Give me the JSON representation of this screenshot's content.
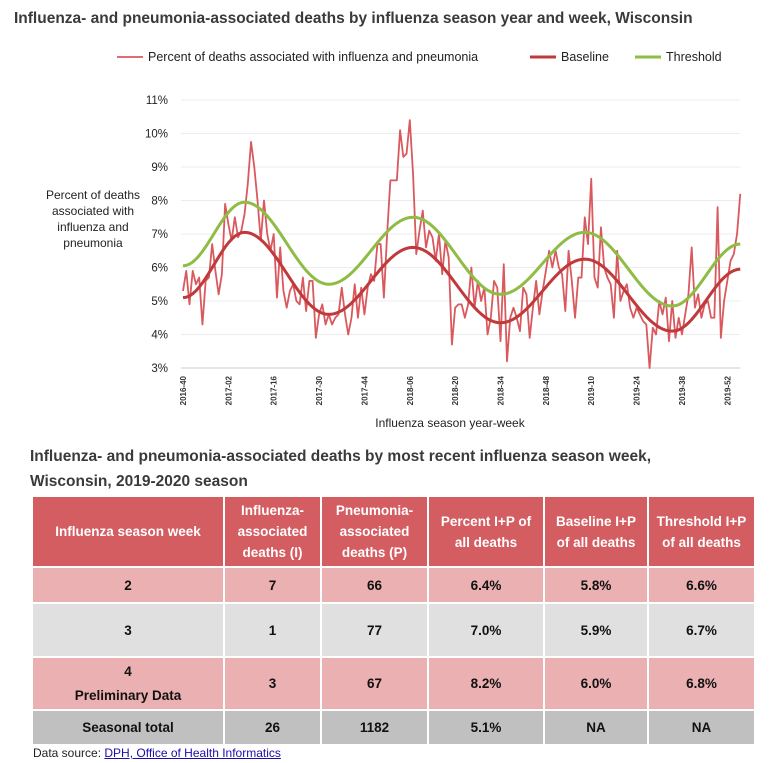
{
  "chart_data": {
    "type": "line",
    "title": "Influenza- and pneumonia-associated deaths by influenza season year and week, Wisconsin",
    "xlabel": "Influenza season year-week",
    "ylabel": "Percent of deaths associated with influenza and pneumonia",
    "ylim": [
      3,
      11
    ],
    "yticks": [
      "3%",
      "4%",
      "5%",
      "6%",
      "7%",
      "8%",
      "9%",
      "10%",
      "11%"
    ],
    "xticks": [
      "2016-40",
      "2017-02",
      "2017-16",
      "2017-30",
      "2017-44",
      "2018-06",
      "2018-20",
      "2018-34",
      "2018-48",
      "2019-10",
      "2019-24",
      "2019-38",
      "2019-52"
    ],
    "grid": true,
    "legend_position": "top",
    "x_start": "2016-40",
    "x_end": "2020-04",
    "series": [
      {
        "name": "Percent of deaths associated with influenza and pneumonia",
        "color": "#d9595e",
        "values": [
          5.3,
          5.9,
          4.9,
          5.9,
          5.5,
          5.7,
          4.3,
          5.6,
          5.7,
          6.7,
          5.9,
          5.2,
          5.8,
          7.9,
          7.3,
          6.8,
          7.5,
          6.9,
          7.1,
          7.6,
          8.5,
          9.75,
          9.0,
          8.0,
          6.8,
          8.0,
          7.0,
          6.5,
          7.0,
          5.1,
          6.6,
          5.3,
          4.8,
          5.3,
          5.5,
          5.0,
          4.9,
          5.7,
          4.7,
          5.6,
          5.6,
          3.9,
          4.6,
          4.9,
          4.3,
          4.6,
          4.3,
          4.5,
          4.6,
          5.4,
          4.6,
          4.0,
          4.5,
          5.5,
          4.5,
          5.4,
          4.6,
          5.4,
          5.8,
          5.6,
          6.7,
          6.7,
          5.1,
          7.0,
          8.6,
          8.6,
          8.6,
          10.1,
          9.3,
          9.4,
          10.4,
          8.8,
          6.4,
          7.1,
          7.7,
          6.6,
          7.1,
          6.9,
          6.2,
          7.0,
          5.8,
          6.8,
          6.3,
          3.7,
          4.8,
          4.9,
          4.9,
          4.5,
          4.9,
          6.0,
          4.8,
          5.6,
          5.0,
          5.4,
          4.0,
          4.5,
          5.6,
          5.4,
          3.8,
          6.1,
          3.2,
          4.5,
          4.8,
          4.5,
          4.1,
          5.4,
          5.2,
          3.9,
          4.8,
          5.6,
          4.6,
          5.3,
          5.9,
          6.5,
          6.0,
          6.5,
          6.0,
          5.8,
          4.7,
          6.5,
          5.6,
          4.5,
          5.7,
          5.7,
          7.5,
          6.7,
          8.65,
          5.7,
          5.4,
          7.2,
          6.0,
          5.7,
          5.5,
          4.5,
          6.5,
          5.0,
          5.3,
          5.5,
          4.8,
          4.5,
          4.8,
          4.6,
          4.4,
          4.3,
          3.0,
          4.2,
          4.0,
          5.0,
          4.6,
          5.1,
          3.8,
          5.0,
          3.9,
          4.5,
          4.0,
          4.6,
          5.2,
          6.6,
          4.8,
          5.2,
          4.5,
          4.9,
          5.0,
          4.5,
          4.5,
          7.8,
          3.9,
          5.0,
          5.6,
          6.2,
          6.4,
          7.0,
          8.2
        ]
      },
      {
        "name": "Baseline",
        "color": "#c0393b",
        "points": [
          [
            "2016-40",
            5.1
          ],
          [
            "2017-07",
            7.05
          ],
          [
            "2017-33",
            4.6
          ],
          [
            "2018-07",
            6.6
          ],
          [
            "2018-34",
            4.35
          ],
          [
            "2019-08",
            6.25
          ],
          [
            "2019-35",
            4.1
          ],
          [
            "2020-04",
            5.95
          ]
        ]
      },
      {
        "name": "Threshold",
        "color": "#8fbc45",
        "points": [
          [
            "2016-40",
            6.05
          ],
          [
            "2017-07",
            7.95
          ],
          [
            "2017-33",
            5.5
          ],
          [
            "2018-07",
            7.5
          ],
          [
            "2018-34",
            5.2
          ],
          [
            "2019-08",
            7.05
          ],
          [
            "2019-35",
            4.85
          ],
          [
            "2020-04",
            6.7
          ]
        ]
      }
    ]
  },
  "ylabel_lines": [
    "Percent of deaths",
    "associated with",
    "influenza and",
    "pneumonia"
  ],
  "table_title": "Influenza- and pneumonia-associated deaths by most recent influenza season week, Wisconsin, 2019-2020 season",
  "table": {
    "headers": [
      "Influenza season week",
      "Influenza-associated deaths (I)",
      "Pneumonia-associated deaths (P)",
      "Percent I+P of all deaths",
      "Baseline I+P of all deaths",
      "Threshold I+P of all deaths"
    ],
    "rows": [
      {
        "week": "2",
        "note": "",
        "i": "7",
        "p": "66",
        "pct": "6.4%",
        "base": "5.8%",
        "thr": "6.6%"
      },
      {
        "week": "3",
        "note": "",
        "i": "1",
        "p": "77",
        "pct": "7.0%",
        "base": "5.9%",
        "thr": "6.7%"
      },
      {
        "week": "4",
        "note": "Preliminary Data",
        "i": "3",
        "p": "67",
        "pct": "8.2%",
        "base": "6.0%",
        "thr": "6.8%"
      },
      {
        "week": "Seasonal total",
        "note": "",
        "i": "26",
        "p": "1182",
        "pct": "5.1%",
        "base": "NA",
        "thr": "NA"
      }
    ]
  },
  "source": {
    "label": "Data source: ",
    "link": "DPH, Office of Health Informatics"
  }
}
